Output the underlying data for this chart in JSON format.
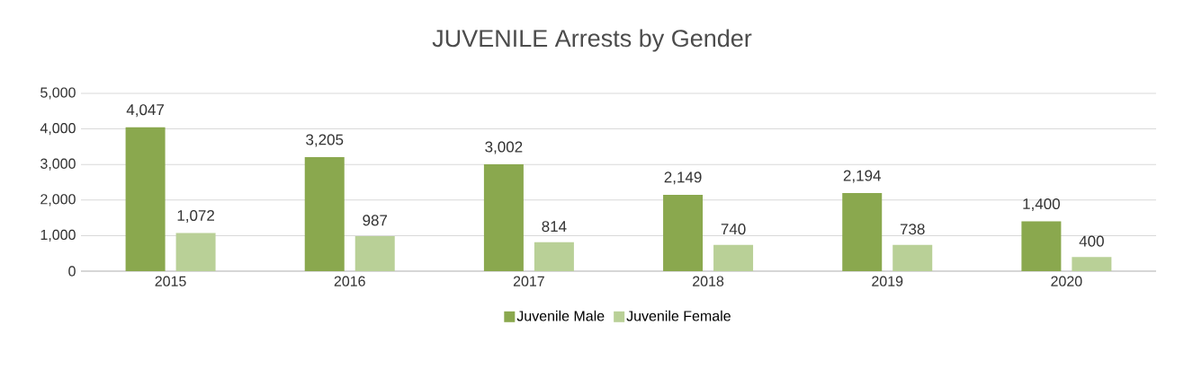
{
  "chart_data": {
    "type": "bar",
    "title": "JUVENILE Arrests by Gender",
    "categories": [
      "2015",
      "2016",
      "2017",
      "2018",
      "2019",
      "2020"
    ],
    "series": [
      {
        "name": "Juvenile Male",
        "color": "#8aa84e",
        "values": [
          4047,
          3205,
          3002,
          2149,
          2194,
          1400
        ],
        "value_labels": [
          "4,047",
          "3,205",
          "3,002",
          "2,149",
          "2,194",
          "1,400"
        ]
      },
      {
        "name": "Juvenile Female",
        "color": "#b9d097",
        "values": [
          1072,
          987,
          814,
          740,
          738,
          400
        ],
        "value_labels": [
          "1,072",
          "987",
          "814",
          "740",
          "738",
          "400"
        ]
      }
    ],
    "ylim": [
      0,
      5000
    ],
    "yticks": [
      {
        "value": 0,
        "label": "0"
      },
      {
        "value": 1000,
        "label": "1,000"
      },
      {
        "value": 2000,
        "label": "2,000"
      },
      {
        "value": 3000,
        "label": "3,000"
      },
      {
        "value": 4000,
        "label": "4,000"
      },
      {
        "value": 5000,
        "label": "5,000"
      }
    ],
    "grid": "y",
    "legend": "bottom"
  }
}
